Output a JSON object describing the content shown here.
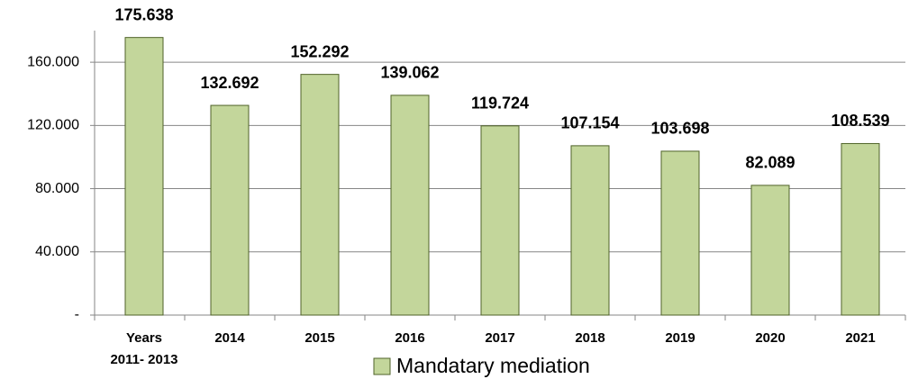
{
  "chart_data": {
    "type": "bar",
    "categories": [
      "Years\n2011- 2013",
      "2014",
      "2015",
      "2016",
      "2017",
      "2018",
      "2019",
      "2020",
      "2021"
    ],
    "series": [
      {
        "name": "Mandatary mediation",
        "color": "#c3d69b",
        "values": [
          175638,
          132692,
          152292,
          139062,
          119724,
          107154,
          103698,
          82089,
          108539
        ],
        "value_labels": [
          "175.638",
          "132.692",
          "152.292",
          "139.062",
          "119.724",
          "107.154",
          "103.698",
          "82.089",
          "108.539"
        ]
      }
    ],
    "ylim": [
      0,
      180000
    ],
    "yticks": [
      {
        "value": 0,
        "label": "-"
      },
      {
        "value": 40000,
        "label": "40.000"
      },
      {
        "value": 80000,
        "label": "80.000"
      },
      {
        "value": 120000,
        "label": "120.000"
      },
      {
        "value": 160000,
        "label": "160.000"
      }
    ],
    "grid": true,
    "legend": "bottom"
  }
}
